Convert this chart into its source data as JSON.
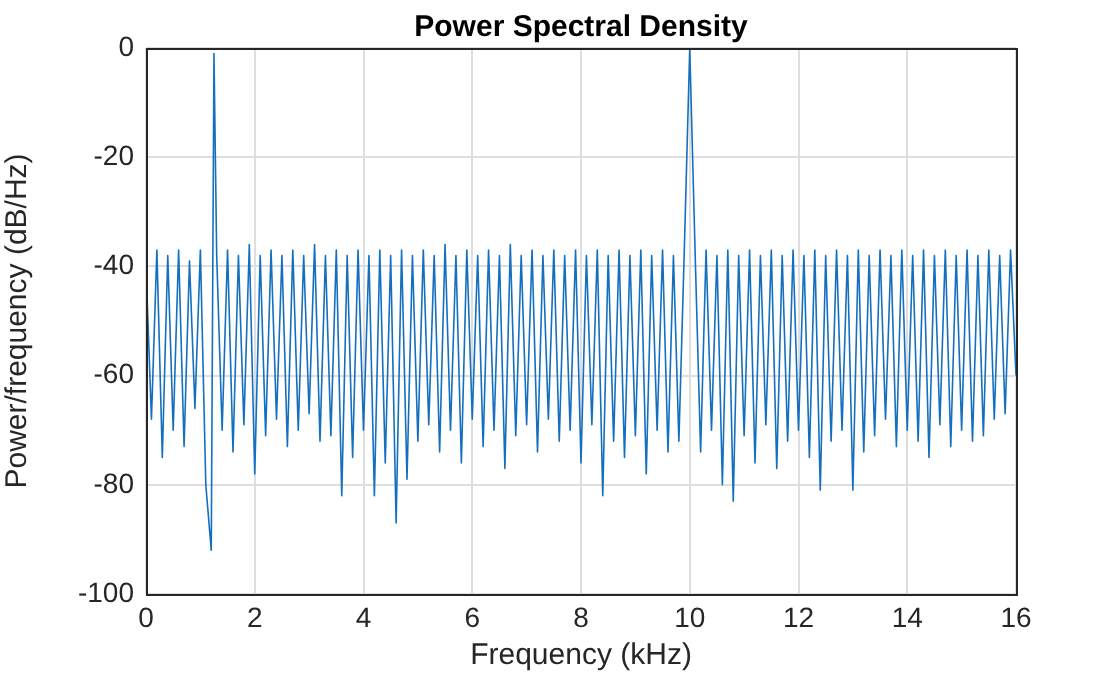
{
  "chart_data": {
    "type": "line",
    "title": "Power Spectral Density",
    "xlabel": "Frequency (kHz)",
    "ylabel": "Power/frequency (dB/Hz)",
    "xlim": [
      0,
      16
    ],
    "xticks": [
      0,
      2,
      4,
      6,
      8,
      10,
      12,
      14,
      16
    ],
    "ylim": [
      -100,
      0
    ],
    "yticks": [
      -100,
      -80,
      -60,
      -40,
      -20,
      0
    ],
    "grid": true,
    "legend": false,
    "marker": "none",
    "line_style": "solid",
    "series": [
      {
        "color": "#1470bf",
        "x": [
          0,
          0.1,
          0.2,
          0.3,
          0.4,
          0.5,
          0.6,
          0.7,
          0.8,
          0.9,
          1.0,
          1.1,
          1.2,
          1.25,
          1.3,
          1.4,
          1.5,
          1.6,
          1.7,
          1.8,
          1.9,
          2.0,
          2.1,
          2.2,
          2.3,
          2.4,
          2.5,
          2.6,
          2.7,
          2.8,
          2.9,
          3.0,
          3.1,
          3.2,
          3.3,
          3.4,
          3.5,
          3.6,
          3.7,
          3.8,
          3.9,
          4.0,
          4.1,
          4.2,
          4.3,
          4.4,
          4.5,
          4.6,
          4.7,
          4.8,
          4.9,
          5.0,
          5.1,
          5.2,
          5.3,
          5.4,
          5.5,
          5.6,
          5.7,
          5.8,
          5.9,
          6.0,
          6.1,
          6.2,
          6.3,
          6.4,
          6.5,
          6.6,
          6.7,
          6.8,
          6.9,
          7.0,
          7.1,
          7.2,
          7.3,
          7.4,
          7.5,
          7.6,
          7.7,
          7.8,
          7.9,
          8.0,
          8.1,
          8.2,
          8.3,
          8.4,
          8.5,
          8.6,
          8.7,
          8.8,
          8.9,
          9.0,
          9.1,
          9.2,
          9.3,
          9.4,
          9.5,
          9.6,
          9.7,
          9.8,
          9.9,
          10.0,
          10.1,
          10.2,
          10.3,
          10.4,
          10.5,
          10.6,
          10.7,
          10.8,
          10.9,
          11.0,
          11.1,
          11.2,
          11.3,
          11.4,
          11.5,
          11.6,
          11.7,
          11.8,
          11.9,
          12.0,
          12.1,
          12.2,
          12.3,
          12.4,
          12.5,
          12.6,
          12.7,
          12.8,
          12.9,
          13.0,
          13.1,
          13.2,
          13.3,
          13.4,
          13.5,
          13.6,
          13.7,
          13.8,
          13.9,
          14.0,
          14.1,
          14.2,
          14.3,
          14.4,
          14.5,
          14.6,
          14.7,
          14.8,
          14.9,
          15.0,
          15.1,
          15.2,
          15.3,
          15.4,
          15.5,
          15.6,
          15.7,
          15.8,
          15.9,
          16.0
        ],
        "values": [
          -40,
          -68,
          -37,
          -75,
          -38,
          -70,
          -37,
          -73,
          -39,
          -66,
          -37,
          -80,
          -92,
          -1,
          -38,
          -70,
          -37,
          -74,
          -38,
          -69,
          -36,
          -78,
          -38,
          -71,
          -37,
          -68,
          -38,
          -73,
          -37,
          -70,
          -38,
          -67,
          -36,
          -72,
          -38,
          -71,
          -37,
          -82,
          -38,
          -75,
          -37,
          -70,
          -38,
          -82,
          -37,
          -76,
          -38,
          -87,
          -37,
          -79,
          -38,
          -72,
          -37,
          -69,
          -38,
          -74,
          -36,
          -70,
          -38,
          -76,
          -37,
          -68,
          -38,
          -73,
          -37,
          -70,
          -38,
          -77,
          -36,
          -71,
          -38,
          -69,
          -37,
          -74,
          -38,
          -68,
          -37,
          -72,
          -38,
          -70,
          -37,
          -76,
          -38,
          -69,
          -37,
          -82,
          -38,
          -72,
          -37,
          -75,
          -38,
          -71,
          -37,
          -78,
          -38,
          -70,
          -37,
          -74,
          -38,
          -72,
          -37,
          0,
          -38,
          -74,
          -37,
          -70,
          -38,
          -80,
          -37,
          -83,
          -38,
          -71,
          -37,
          -76,
          -38,
          -69,
          -37,
          -77,
          -38,
          -72,
          -37,
          -70,
          -38,
          -75,
          -37,
          -81,
          -38,
          -72,
          -37,
          -70,
          -38,
          -81,
          -37,
          -74,
          -38,
          -71,
          -37,
          -68,
          -38,
          -73,
          -37,
          -70,
          -38,
          -72,
          -37,
          -75,
          -38,
          -69,
          -37,
          -73,
          -38,
          -70,
          -37,
          -72,
          -38,
          -71,
          -37,
          -68,
          -38,
          -67,
          -37,
          -60
        ]
      }
    ]
  }
}
